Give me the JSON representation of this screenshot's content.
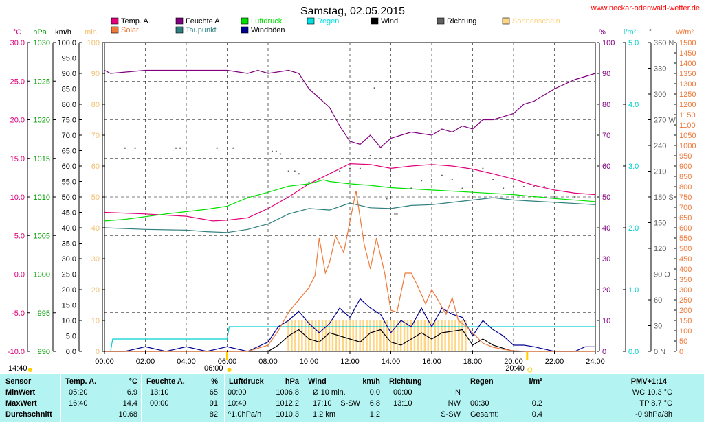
{
  "title": "Samstag, 02.05.2015",
  "source": "www.neckar-odenwald-wetter.de",
  "legend": [
    {
      "label": "Temp. A.",
      "color": "#e0007a"
    },
    {
      "label": "Feuchte A.",
      "color": "#80007f"
    },
    {
      "label": "Luftdruck",
      "color": "#00e000"
    },
    {
      "label": "Regen",
      "color": "#00e0e0"
    },
    {
      "label": "Wind",
      "color": "#000000"
    },
    {
      "label": "Richtung",
      "color": "#606060"
    },
    {
      "label": "Sonnenschein",
      "color": "#ffd580"
    },
    {
      "label": "Solar",
      "color": "#f07838"
    },
    {
      "label": "Taupunkt",
      "color": "#2f7f7f"
    },
    {
      "label": "Windböen",
      "color": "#000090"
    }
  ],
  "axes": {
    "temp": {
      "unit": "°C",
      "ticks": [
        "30.0",
        "25.0",
        "20.0",
        "15.0",
        "10.0",
        "5.0",
        "0.0",
        "-5.0",
        "-10.0"
      ],
      "color": "#e0007a"
    },
    "pressure": {
      "unit": "hPa",
      "ticks": [
        "1030",
        "1025",
        "1020",
        "1015",
        "1010",
        "1005",
        "1000",
        "995",
        "990"
      ],
      "color": "#00a000"
    },
    "wind": {
      "unit": "km/h",
      "ticks": [
        "100.0",
        "95.0",
        "90.0",
        "85.0",
        "80.0",
        "75.0",
        "70.0",
        "65.0",
        "60.0",
        "55.0",
        "50.0",
        "45.0",
        "40.0",
        "35.0",
        "30.0",
        "25.0",
        "20.0",
        "15.0",
        "10.0",
        "5.0",
        "0.0"
      ],
      "color": "#000000"
    },
    "sun": {
      "unit": "min",
      "ticks": [
        "100",
        "90",
        "80",
        "70",
        "60",
        "50",
        "40",
        "30",
        "20",
        "10",
        "0"
      ],
      "color": "#f0c070"
    },
    "humidity": {
      "unit": "%",
      "ticks": [
        "100",
        "90",
        "80",
        "70",
        "60",
        "50",
        "40",
        "30",
        "20",
        "10",
        "0"
      ],
      "color": "#80007f"
    },
    "rain": {
      "unit": "l/m²",
      "ticks": [
        "5.0",
        "4.0",
        "3.0",
        "2.0",
        "1.0",
        "0.0"
      ],
      "color": "#00d0d0"
    },
    "direction": {
      "unit": "°",
      "ticks": [
        "360 N",
        "330",
        "300",
        "270 W",
        "240",
        "210",
        "180 S",
        "150",
        "120",
        "90 O",
        "60",
        "30",
        "0 N"
      ],
      "color": "#606060"
    },
    "solar": {
      "unit": "W/m²",
      "ticks": [
        "1500",
        "1450",
        "1400",
        "1350",
        "1300",
        "1250",
        "1200",
        "1150",
        "1100",
        "1050",
        "1000",
        "950",
        "900",
        "850",
        "800",
        "750",
        "700",
        "650",
        "600",
        "550",
        "500",
        "450",
        "400",
        "350",
        "300",
        "250",
        "200",
        "150",
        "100",
        "50",
        "0"
      ],
      "color": "#f07838"
    },
    "x": {
      "ticks": [
        "00:00",
        "02:00",
        "04:00",
        "06:00",
        "08:00",
        "10:00",
        "12:00",
        "14:00",
        "16:00",
        "18:00",
        "20:00",
        "22:00",
        "24:00"
      ]
    }
  },
  "markers": {
    "sunrise": "06:00",
    "sunset": "20:40",
    "left_time": "14:40"
  },
  "chart_data": {
    "type": "line",
    "title": "Samstag, 02.05.2015",
    "x_unit": "hour of day",
    "xlim": [
      0,
      24
    ],
    "series": [
      {
        "name": "Feuchte A.",
        "axis": "humidity",
        "color": "#80007f",
        "points": [
          [
            0,
            91
          ],
          [
            0.3,
            90
          ],
          [
            2,
            91
          ],
          [
            4,
            91
          ],
          [
            6,
            91
          ],
          [
            7,
            90
          ],
          [
            7.5,
            91
          ],
          [
            8,
            90
          ],
          [
            9,
            91
          ],
          [
            9.5,
            90
          ],
          [
            10,
            85
          ],
          [
            11,
            79
          ],
          [
            11.5,
            73
          ],
          [
            12,
            68
          ],
          [
            12.5,
            67
          ],
          [
            13,
            70
          ],
          [
            13.5,
            66
          ],
          [
            14,
            69
          ],
          [
            15,
            71
          ],
          [
            16,
            70
          ],
          [
            16.5,
            72
          ],
          [
            17,
            71
          ],
          [
            17.5,
            73
          ],
          [
            18,
            72
          ],
          [
            18.5,
            75
          ],
          [
            19,
            75
          ],
          [
            20,
            77
          ],
          [
            20.5,
            80
          ],
          [
            21,
            81
          ],
          [
            22,
            85
          ],
          [
            23,
            88
          ],
          [
            24,
            90
          ]
        ]
      },
      {
        "name": "Temp. A.",
        "axis": "temp",
        "color": "#e0007a",
        "points": [
          [
            0,
            8.0
          ],
          [
            2,
            7.8
          ],
          [
            4,
            7.5
          ],
          [
            5.3,
            6.9
          ],
          [
            6,
            7.0
          ],
          [
            7,
            7.3
          ],
          [
            8,
            8.5
          ],
          [
            9,
            10.0
          ],
          [
            10,
            11.7
          ],
          [
            11,
            13.0
          ],
          [
            12,
            14.3
          ],
          [
            13,
            14.2
          ],
          [
            14,
            13.7
          ],
          [
            15,
            14.0
          ],
          [
            16,
            14.2
          ],
          [
            17,
            14.0
          ],
          [
            18,
            13.6
          ],
          [
            19,
            13.0
          ],
          [
            20,
            12.3
          ],
          [
            21,
            11.5
          ],
          [
            22,
            10.9
          ],
          [
            23,
            10.5
          ],
          [
            24,
            10.3
          ]
        ]
      },
      {
        "name": "Luftdruck",
        "axis": "pressure",
        "color": "#00e000",
        "points": [
          [
            0,
            1006.9
          ],
          [
            1,
            1007.1
          ],
          [
            3,
            1007.8
          ],
          [
            5,
            1008.4
          ],
          [
            6,
            1008.8
          ],
          [
            7,
            1009.9
          ],
          [
            8,
            1010.6
          ],
          [
            9,
            1011.4
          ],
          [
            10,
            1011.7
          ],
          [
            10.7,
            1012.2
          ],
          [
            11,
            1012.0
          ],
          [
            12,
            1011.7
          ],
          [
            13,
            1011.5
          ],
          [
            14,
            1011.2
          ],
          [
            16,
            1010.9
          ],
          [
            18,
            1010.6
          ],
          [
            20,
            1010.3
          ],
          [
            22,
            1009.8
          ],
          [
            24,
            1009.4
          ]
        ]
      },
      {
        "name": "Taupunkt",
        "axis": "temp",
        "color": "#2f7f7f",
        "points": [
          [
            0,
            6.0
          ],
          [
            2,
            5.8
          ],
          [
            4,
            5.7
          ],
          [
            5,
            5.5
          ],
          [
            6,
            5.4
          ],
          [
            7,
            5.8
          ],
          [
            8,
            6.5
          ],
          [
            9,
            7.8
          ],
          [
            10,
            8.5
          ],
          [
            11,
            8.3
          ],
          [
            12,
            9.2
          ],
          [
            13,
            8.6
          ],
          [
            14,
            8.5
          ],
          [
            15,
            8.9
          ],
          [
            16,
            9.0
          ],
          [
            17,
            9.3
          ],
          [
            18,
            9.6
          ],
          [
            19,
            9.9
          ],
          [
            20,
            9.6
          ],
          [
            22,
            9.3
          ],
          [
            24,
            9.0
          ]
        ]
      },
      {
        "name": "Regen",
        "axis": "rain",
        "color": "#00d0d0",
        "points": [
          [
            0.3,
            0.0
          ],
          [
            0.4,
            0.2
          ],
          [
            6,
            0.2
          ],
          [
            6.1,
            0.4
          ],
          [
            24,
            0.4
          ]
        ]
      },
      {
        "name": "Windböen",
        "axis": "wind",
        "color": "#000090",
        "points": [
          [
            0,
            0
          ],
          [
            1,
            0
          ],
          [
            2,
            1.5
          ],
          [
            3,
            0
          ],
          [
            4,
            1.5
          ],
          [
            5,
            0
          ],
          [
            6,
            1.5
          ],
          [
            7,
            0
          ],
          [
            8,
            3
          ],
          [
            8.5,
            8
          ],
          [
            9,
            10
          ],
          [
            9.5,
            13
          ],
          [
            10,
            9
          ],
          [
            10.5,
            6
          ],
          [
            11,
            9
          ],
          [
            11.5,
            14
          ],
          [
            12,
            11
          ],
          [
            12.5,
            17
          ],
          [
            13,
            14
          ],
          [
            13.5,
            12
          ],
          [
            14,
            6
          ],
          [
            14.5,
            10
          ],
          [
            15,
            8
          ],
          [
            15.5,
            14
          ],
          [
            16,
            8
          ],
          [
            16.5,
            14
          ],
          [
            17,
            12
          ],
          [
            17.5,
            11
          ],
          [
            18,
            5
          ],
          [
            18.5,
            10
          ],
          [
            19,
            7
          ],
          [
            19.5,
            5
          ],
          [
            20,
            2
          ],
          [
            20.5,
            2
          ],
          [
            21,
            1.5
          ],
          [
            22,
            0
          ],
          [
            23,
            0
          ],
          [
            23.5,
            1.5
          ],
          [
            24,
            1.5
          ]
        ]
      },
      {
        "name": "Wind",
        "axis": "wind",
        "color": "#000000",
        "points": [
          [
            0,
            0
          ],
          [
            7,
            0
          ],
          [
            8,
            0
          ],
          [
            8.5,
            2
          ],
          [
            9,
            5
          ],
          [
            9.5,
            7
          ],
          [
            10,
            4
          ],
          [
            10.5,
            3
          ],
          [
            11,
            6
          ],
          [
            11.5,
            5
          ],
          [
            12,
            4
          ],
          [
            12.5,
            3
          ],
          [
            13,
            6
          ],
          [
            13.5,
            7
          ],
          [
            14,
            3
          ],
          [
            14.5,
            2
          ],
          [
            15,
            4
          ],
          [
            15.5,
            6
          ],
          [
            16,
            4
          ],
          [
            16.5,
            6
          ],
          [
            17,
            6.5
          ],
          [
            17.5,
            7
          ],
          [
            18,
            2
          ],
          [
            18.5,
            4
          ],
          [
            19,
            2
          ],
          [
            20,
            0
          ],
          [
            24,
            0
          ]
        ]
      },
      {
        "name": "Solar",
        "axis": "solar",
        "color": "#f07838",
        "points": [
          [
            0,
            0
          ],
          [
            7,
            0
          ],
          [
            8,
            30
          ],
          [
            8.5,
            100
          ],
          [
            9,
            190
          ],
          [
            9.5,
            250
          ],
          [
            10,
            310
          ],
          [
            10.3,
            370
          ],
          [
            10.5,
            550
          ],
          [
            10.8,
            380
          ],
          [
            11,
            430
          ],
          [
            11.3,
            560
          ],
          [
            11.7,
            480
          ],
          [
            12,
            630
          ],
          [
            12.3,
            780
          ],
          [
            12.7,
            520
          ],
          [
            13,
            400
          ],
          [
            13.3,
            550
          ],
          [
            13.7,
            380
          ],
          [
            14,
            200
          ],
          [
            14.3,
            190
          ],
          [
            14.7,
            380
          ],
          [
            15,
            380
          ],
          [
            15.3,
            320
          ],
          [
            15.7,
            230
          ],
          [
            16,
            300
          ],
          [
            16.3,
            250
          ],
          [
            16.7,
            180
          ],
          [
            17,
            260
          ],
          [
            17.3,
            150
          ],
          [
            17.7,
            120
          ],
          [
            18,
            90
          ],
          [
            18.5,
            40
          ],
          [
            19,
            20
          ],
          [
            19.5,
            10
          ],
          [
            20,
            3
          ],
          [
            20.7,
            0
          ],
          [
            24,
            0
          ]
        ]
      }
    ],
    "sunshine_minutes": {
      "axis": "sun",
      "color": "#ffd580",
      "from": "09:00",
      "to": "17:40",
      "value": 10
    },
    "wind_direction_points": [
      [
        1,
        237
      ],
      [
        1.5,
        237
      ],
      [
        3.5,
        237
      ],
      [
        3.7,
        237
      ],
      [
        5.5,
        237
      ],
      [
        6.3,
        237
      ],
      [
        8.2,
        233
      ],
      [
        8.4,
        233
      ],
      [
        8.6,
        230
      ],
      [
        9,
        210
      ],
      [
        9.3,
        210
      ],
      [
        9.5,
        207
      ],
      [
        10,
        197
      ],
      [
        11.5,
        210
      ],
      [
        12,
        213
      ],
      [
        12.5,
        213
      ],
      [
        13,
        228
      ],
      [
        13.2,
        307
      ],
      [
        13.8,
        178
      ],
      [
        14.2,
        160
      ],
      [
        14.3,
        160
      ],
      [
        15,
        190
      ],
      [
        15.5,
        199
      ],
      [
        16,
        200
      ],
      [
        16.5,
        205
      ],
      [
        17,
        200
      ],
      [
        17.5,
        190
      ],
      [
        18,
        210
      ],
      [
        18.5,
        213
      ],
      [
        19,
        200
      ],
      [
        19.5,
        190
      ],
      [
        20,
        192
      ],
      [
        20.5,
        192
      ],
      [
        21,
        192
      ],
      [
        21.5,
        192
      ],
      [
        22,
        180
      ],
      [
        23,
        180
      ]
    ]
  },
  "table": {
    "headers": [
      "Sensor",
      "Temp. A.",
      "°C",
      "Feuchte A.",
      "%",
      "Luftdruck",
      "hPa",
      "Wind",
      "km/h",
      "Richtung",
      "Regen",
      "l/m²",
      "PMV+1:14"
    ],
    "rows": [
      {
        "sensor": "MinWert",
        "t_time": "05:20",
        "t_val": "6.9",
        "h_time": "13:10",
        "h_val": "65",
        "p_time": "00:00",
        "p_val": "1006.8",
        "w_a": "Ø 10 min.",
        "w_b": "",
        "w_val": "0.0",
        "d_time": "00:00",
        "d_val": "N",
        "r_time": "",
        "r_val": "",
        "pmv": "WC 10.3 °C"
      },
      {
        "sensor": "MaxWert",
        "t_time": "16:40",
        "t_val": "14.4",
        "h_time": "00:00",
        "h_val": "91",
        "p_time": "10:40",
        "p_val": "1012.2",
        "w_a": "17:10",
        "w_b": "S-SW",
        "w_val": "6.8",
        "d_time": "13:10",
        "d_val": "NW",
        "r_time": "00:30",
        "r_val": "0.2",
        "pmv": "TP 8.7 °C"
      },
      {
        "sensor": "Durchschnitt",
        "t_time": "",
        "t_val": "10.68",
        "h_time": "",
        "h_val": "82",
        "p_time": "^1.0hPa/h",
        "p_val": "1010.3",
        "w_a": "1,2 km",
        "w_b": "",
        "w_val": "1.2",
        "d_time": "",
        "d_val": "S-SW",
        "r_time": "Gesamt:",
        "r_val": "0.4",
        "pmv": "-0.9hPa/3h"
      }
    ]
  }
}
